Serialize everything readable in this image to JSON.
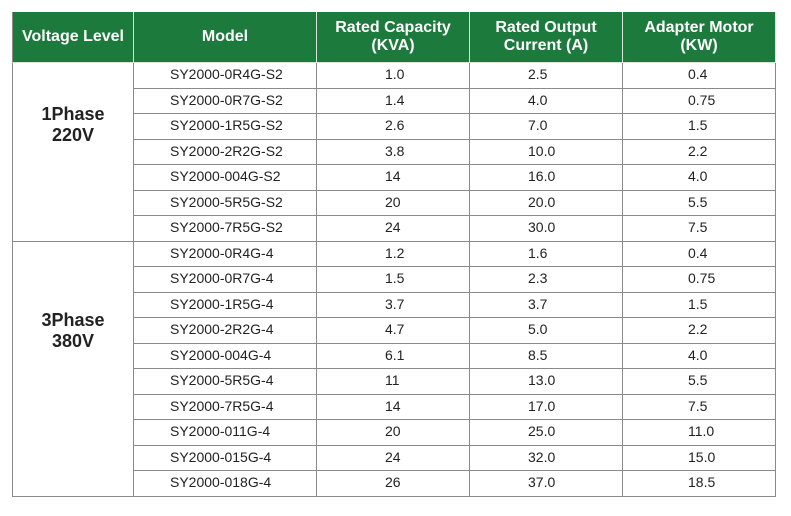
{
  "table": {
    "header": [
      [
        "Voltage Level"
      ],
      [
        "Model"
      ],
      [
        "Rated Capacity",
        "(KVA)"
      ],
      [
        "Rated Output",
        "Current (A)"
      ],
      [
        "Adapter Motor",
        "(KW)"
      ]
    ],
    "groups": [
      {
        "label": [
          "1Phase",
          "220V"
        ],
        "rows": [
          [
            "SY2000-0R4G-S2",
            "1.0",
            "2.5",
            "0.4"
          ],
          [
            "SY2000-0R7G-S2",
            "1.4",
            "4.0",
            "0.75"
          ],
          [
            "SY2000-1R5G-S2",
            "2.6",
            "7.0",
            "1.5"
          ],
          [
            "SY2000-2R2G-S2",
            "3.8",
            "10.0",
            "2.2"
          ],
          [
            "SY2000-004G-S2",
            "14",
            "16.0",
            "4.0"
          ],
          [
            "SY2000-5R5G-S2",
            "20",
            "20.0",
            "5.5"
          ],
          [
            "SY2000-7R5G-S2",
            "24",
            "30.0",
            "7.5"
          ]
        ]
      },
      {
        "label": [
          "3Phase",
          "380V"
        ],
        "rows": [
          [
            "SY2000-0R4G-4",
            "1.2",
            "1.6",
            "0.4"
          ],
          [
            "SY2000-0R7G-4",
            "1.5",
            "2.3",
            "0.75"
          ],
          [
            "SY2000-1R5G-4",
            "3.7",
            "3.7",
            "1.5"
          ],
          [
            "SY2000-2R2G-4",
            "4.7",
            "5.0",
            "2.2"
          ],
          [
            "SY2000-004G-4",
            "6.1",
            "8.5",
            "4.0"
          ],
          [
            "SY2000-5R5G-4",
            "11",
            "13.0",
            "5.5"
          ],
          [
            "SY2000-7R5G-4",
            "14",
            "17.0",
            "7.5"
          ],
          [
            "SY2000-011G-4",
            "20",
            "25.0",
            "11.0"
          ],
          [
            "SY2000-015G-4",
            "24",
            "32.0",
            "15.0"
          ],
          [
            "SY2000-018G-4",
            "26",
            "37.0",
            "18.5"
          ]
        ]
      }
    ]
  }
}
